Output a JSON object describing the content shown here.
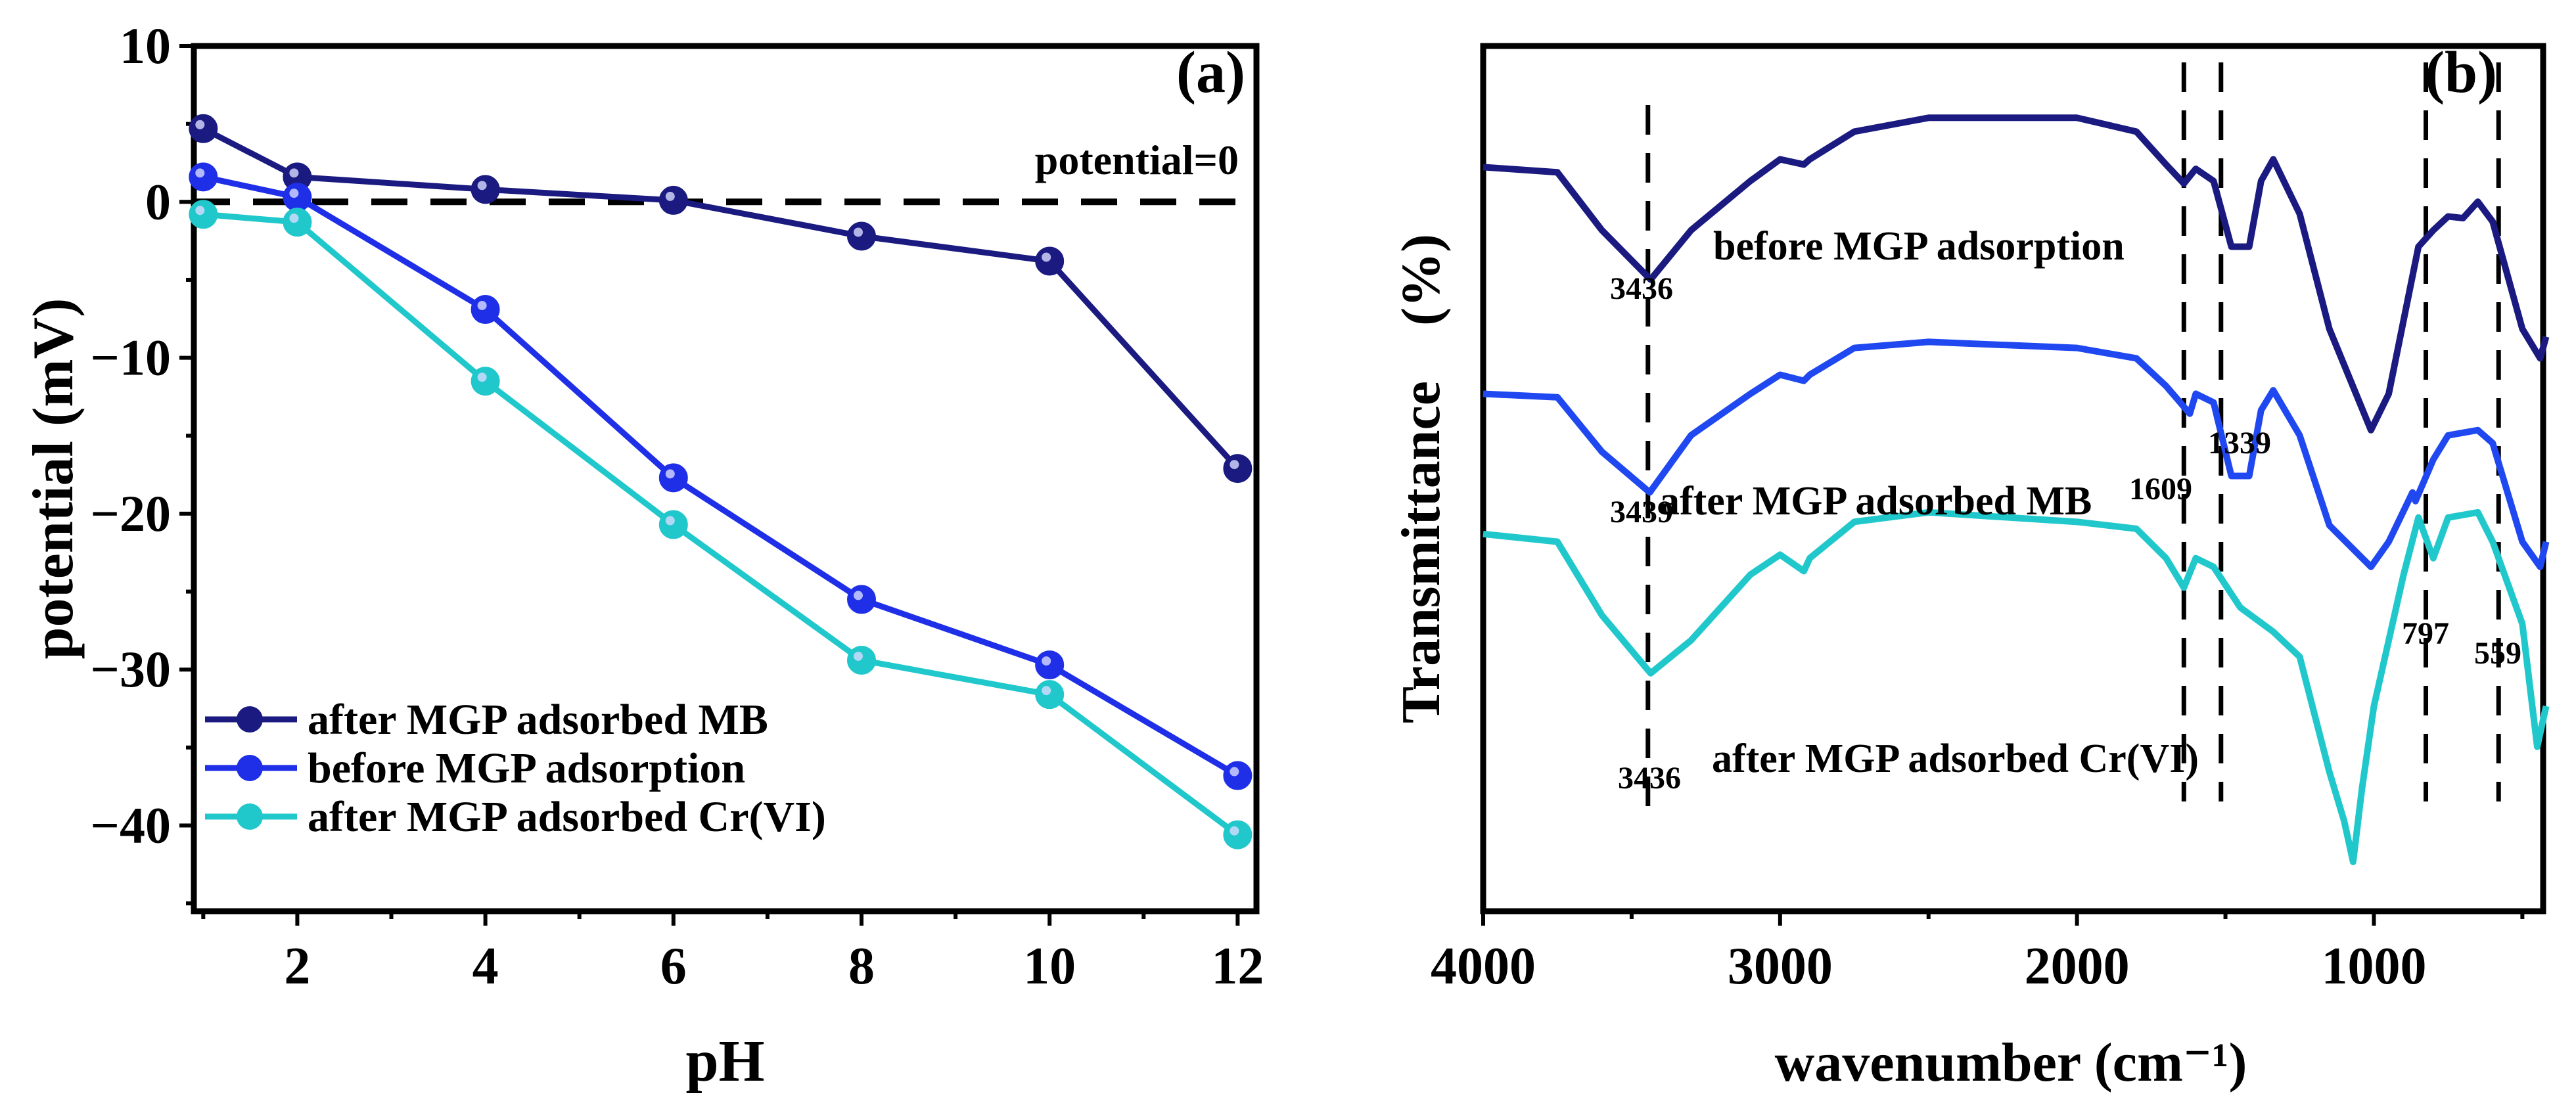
{
  "chart_data": [
    {
      "type": "line",
      "panel_label": "(a)",
      "xlabel": "pH",
      "ylabel": "potential (mV)",
      "xlim": [
        0.9,
        12.2
      ],
      "ylim": [
        -45.5,
        10
      ],
      "xticks": [
        2,
        4,
        6,
        8,
        10,
        12
      ],
      "yticks": [
        10,
        0,
        -10,
        -20,
        -30,
        -40
      ],
      "ytick_labels": [
        "10",
        "0",
        "−10",
        "−20",
        "−30",
        "−40"
      ],
      "reference_line": {
        "y": 0,
        "label": "potential=0"
      },
      "legend_position": "bottom-left",
      "x": [
        1,
        2,
        4,
        6,
        8,
        10,
        12
      ],
      "series": [
        {
          "name": "after MGP adsorbed MB",
          "color": "#1a1a80",
          "values": [
            4.7,
            1.6,
            0.8,
            0.1,
            -2.2,
            -3.8,
            -17.1
          ]
        },
        {
          "name": "before MGP adsorption",
          "color": "#1f2fe8",
          "values": [
            1.6,
            0.3,
            -6.9,
            -17.7,
            -25.5,
            -29.7,
            -36.8
          ]
        },
        {
          "name": "after MGP adsorbed Cr(VI)",
          "color": "#20c8cc",
          "values": [
            -0.8,
            -1.3,
            -11.5,
            -20.7,
            -29.4,
            -31.6,
            -40.6
          ]
        }
      ]
    },
    {
      "type": "line",
      "panel_label": "(b)",
      "xlabel": "wavenumber (cm⁻¹)",
      "ylabel": "Transmittance　(%)",
      "xlim": [
        4000,
        430
      ],
      "ylim": [
        0,
        100
      ],
      "xticks": [
        4000,
        3000,
        2000,
        1000
      ],
      "marker_lines": [
        3445,
        1640,
        1515,
        825,
        580
      ],
      "series": [
        {
          "name": "before MGP adsorption",
          "color": "#1a1a80",
          "x": [
            4000,
            3750,
            3600,
            3436,
            3300,
            3100,
            3000,
            2920,
            2900,
            2750,
            2500,
            2000,
            1800,
            1700,
            1640,
            1600,
            1540,
            1480,
            1420,
            1380,
            1339,
            1250,
            1150,
            1010,
            950,
            850,
            800,
            750,
            700,
            650,
            600,
            500,
            440,
            420
          ],
          "values": [
            86.0,
            85.4,
            78.7,
            73.0,
            78.7,
            84.4,
            86.9,
            86.3,
            86.9,
            90.1,
            91.7,
            91.7,
            90.1,
            86.3,
            84.1,
            85.8,
            84.4,
            76.8,
            76.8,
            84.4,
            86.9,
            80.6,
            67.3,
            55.6,
            59.8,
            76.8,
            78.7,
            80.3,
            80.1,
            82.0,
            79.7,
            67.3,
            63.9,
            66.4
          ]
        },
        {
          "name": "after MGP adsorbed MB",
          "color": "#2048f0",
          "x": [
            4000,
            3750,
            3600,
            3439,
            3300,
            3100,
            3000,
            2920,
            2900,
            2750,
            2500,
            2000,
            1800,
            1700,
            1620,
            1600,
            1540,
            1480,
            1420,
            1380,
            1339,
            1250,
            1150,
            1010,
            950,
            870,
            860,
            800,
            750,
            650,
            600,
            500,
            440,
            420
          ],
          "values": [
            59.8,
            59.4,
            53.1,
            48.4,
            55.0,
            59.8,
            62.0,
            61.3,
            62.0,
            65.1,
            65.8,
            65.1,
            63.9,
            60.7,
            57.5,
            59.8,
            58.8,
            50.3,
            50.3,
            57.9,
            60.2,
            55.0,
            44.6,
            39.8,
            42.7,
            48.4,
            47.4,
            52.2,
            55.0,
            55.6,
            54.1,
            42.7,
            39.8,
            42.7
          ]
        },
        {
          "name": "after MGP adsorbed Cr(VI)",
          "color": "#20c8cc",
          "x": [
            4000,
            3750,
            3600,
            3436,
            3300,
            3100,
            3000,
            2920,
            2900,
            2750,
            2500,
            2000,
            1800,
            1700,
            1640,
            1600,
            1540,
            1450,
            1339,
            1250,
            1150,
            1100,
            1070,
            1040,
            1000,
            900,
            850,
            800,
            750,
            650,
            600,
            500,
            450,
            420
          ],
          "values": [
            43.6,
            42.7,
            34.2,
            27.5,
            31.3,
            38.9,
            41.2,
            39.3,
            40.8,
            45.0,
            46.1,
            45.0,
            44.2,
            40.8,
            37.4,
            40.8,
            39.8,
            35.1,
            32.3,
            29.4,
            16.1,
            10.4,
            5.7,
            14.2,
            23.7,
            38.9,
            45.5,
            40.8,
            45.5,
            46.1,
            42.7,
            33.2,
            19.0,
            23.7
          ]
        }
      ],
      "peak_labels": [
        "3436",
        "1609",
        "1339",
        "3439",
        "3436",
        "797",
        "559"
      ]
    }
  ]
}
